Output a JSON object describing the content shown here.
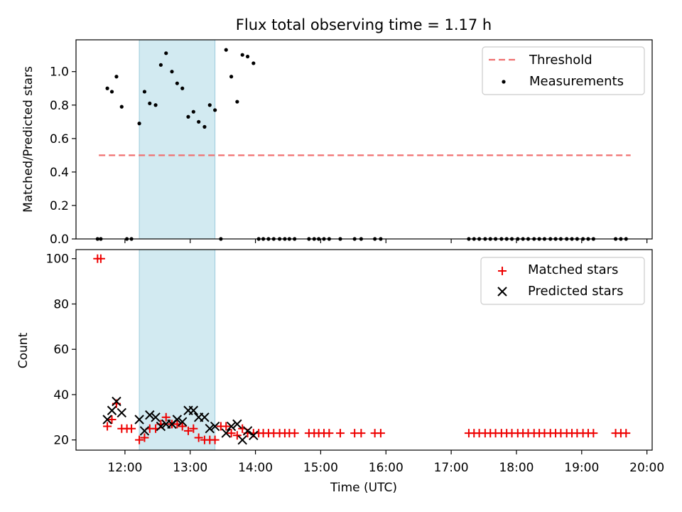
{
  "figure_title": "Flux total observing time = 1.17 h",
  "colors": {
    "threshold": "#f07070",
    "measurement": "#000000",
    "matched": "#ee0000",
    "predicted": "#000000",
    "shade": "#add8e6"
  },
  "chart_data": [
    {
      "type": "scatter",
      "title": "Flux total observing time = 1.17 h",
      "xlabel": "",
      "ylabel": "Matched/Predicted stars",
      "xlim": [
        11.25,
        20.08
      ],
      "ylim": [
        0.0,
        1.19
      ],
      "yticks": [
        "0.0",
        "0.2",
        "0.4",
        "0.6",
        "0.8",
        "1.0"
      ],
      "shaded_interval": [
        12.22,
        13.38
      ],
      "grid": false,
      "legend_position": "top-right",
      "threshold": {
        "name": "Threshold",
        "x": [
          11.6,
          19.75
        ],
        "y": 0.5,
        "style": "dashed"
      },
      "series": [
        {
          "name": "Measurements",
          "x": [
            11.58,
            11.63,
            11.73,
            11.8,
            11.87,
            11.95,
            12.03,
            12.1,
            12.22,
            12.3,
            12.38,
            12.47,
            12.55,
            12.63,
            12.72,
            12.8,
            12.88,
            12.97,
            13.05,
            13.13,
            13.22,
            13.3,
            13.38,
            13.47,
            13.55,
            13.63,
            13.72,
            13.8,
            13.88,
            13.97,
            14.05,
            14.12,
            14.2,
            14.28,
            14.37,
            14.45,
            14.52,
            14.6,
            14.82,
            14.9,
            14.97,
            15.05,
            15.13,
            15.3,
            15.52,
            15.62,
            15.83,
            15.92,
            17.27,
            17.35,
            17.43,
            17.52,
            17.6,
            17.68,
            17.77,
            17.85,
            17.93,
            18.02,
            18.1,
            18.18,
            18.27,
            18.35,
            18.43,
            18.52,
            18.6,
            18.68,
            18.77,
            18.85,
            18.93,
            19.02,
            19.1,
            19.18,
            19.52,
            19.6,
            19.68
          ],
          "values": [
            0.0,
            0.0,
            0.9,
            0.88,
            0.97,
            0.79,
            0.0,
            0.0,
            0.69,
            0.88,
            0.81,
            0.8,
            1.04,
            1.11,
            1.0,
            0.93,
            0.9,
            0.73,
            0.76,
            0.7,
            0.67,
            0.8,
            0.77,
            0.0,
            1.13,
            0.97,
            0.82,
            1.1,
            1.09,
            1.05,
            0.0,
            0.0,
            0.0,
            0.0,
            0.0,
            0.0,
            0.0,
            0.0,
            0.0,
            0.0,
            0.0,
            0.0,
            0.0,
            0.0,
            0.0,
            0.0,
            0.0,
            0.0,
            0.0,
            0.0,
            0.0,
            0.0,
            0.0,
            0.0,
            0.0,
            0.0,
            0.0,
            0.0,
            0.0,
            0.0,
            0.0,
            0.0,
            0.0,
            0.0,
            0.0,
            0.0,
            0.0,
            0.0,
            0.0,
            0.0,
            0.0,
            0.0,
            0.0,
            0.0,
            0.0
          ]
        }
      ]
    },
    {
      "type": "scatter",
      "title": "",
      "xlabel": "Time (UTC)",
      "ylabel": "Count",
      "xlim": [
        11.25,
        20.08
      ],
      "ylim": [
        15.5,
        104
      ],
      "yticks": [
        "20",
        "40",
        "60",
        "80",
        "100"
      ],
      "xticks": [
        "12:00",
        "13:00",
        "14:00",
        "15:00",
        "16:00",
        "17:00",
        "18:00",
        "19:00",
        "20:00"
      ],
      "shaded_interval": [
        12.22,
        13.38
      ],
      "grid": false,
      "legend_position": "top-right",
      "series": [
        {
          "name": "Matched stars",
          "marker": "plus",
          "x": [
            11.58,
            11.63,
            11.73,
            11.8,
            11.87,
            11.95,
            12.03,
            12.1,
            12.22,
            12.3,
            12.38,
            12.47,
            12.55,
            12.63,
            12.72,
            12.8,
            12.88,
            12.97,
            13.05,
            13.13,
            13.22,
            13.3,
            13.38,
            13.47,
            13.55,
            13.63,
            13.72,
            13.8,
            13.88,
            13.97,
            14.05,
            14.12,
            14.2,
            14.28,
            14.37,
            14.45,
            14.52,
            14.6,
            14.82,
            14.9,
            14.97,
            15.05,
            15.13,
            15.3,
            15.52,
            15.62,
            15.83,
            15.92,
            17.27,
            17.35,
            17.43,
            17.52,
            17.6,
            17.68,
            17.77,
            17.85,
            17.93,
            18.02,
            18.1,
            18.18,
            18.27,
            18.35,
            18.43,
            18.52,
            18.6,
            18.68,
            18.77,
            18.85,
            18.93,
            19.02,
            19.1,
            19.18,
            19.52,
            19.6,
            19.68
          ],
          "values": [
            100,
            100,
            26,
            29,
            36,
            25,
            25,
            25,
            20,
            21,
            25,
            25,
            27,
            30,
            27,
            27,
            26,
            24,
            25,
            21,
            20,
            20,
            20,
            26,
            26,
            23,
            22,
            25,
            23,
            23,
            23,
            23,
            23,
            23,
            23,
            23,
            23,
            23,
            23,
            23,
            23,
            23,
            23,
            23,
            23,
            23,
            23,
            23,
            23,
            23,
            23,
            23,
            23,
            23,
            23,
            23,
            23,
            23,
            23,
            23,
            23,
            23,
            23,
            23,
            23,
            23,
            23,
            23,
            23,
            23,
            23,
            23,
            23,
            23,
            23
          ]
        },
        {
          "name": "Predicted stars",
          "marker": "x",
          "x": [
            11.73,
            11.8,
            11.87,
            11.95,
            12.22,
            12.3,
            12.38,
            12.47,
            12.55,
            12.63,
            12.72,
            12.8,
            12.88,
            12.97,
            13.05,
            13.13,
            13.22,
            13.3,
            13.38,
            13.55,
            13.63,
            13.72,
            13.8,
            13.88,
            13.97
          ],
          "values": [
            29,
            33,
            37,
            32,
            29,
            24,
            31,
            30,
            26,
            27,
            27,
            29,
            28,
            33,
            33,
            30,
            30,
            25,
            26,
            23,
            26,
            27,
            20,
            24,
            22
          ]
        }
      ]
    }
  ]
}
